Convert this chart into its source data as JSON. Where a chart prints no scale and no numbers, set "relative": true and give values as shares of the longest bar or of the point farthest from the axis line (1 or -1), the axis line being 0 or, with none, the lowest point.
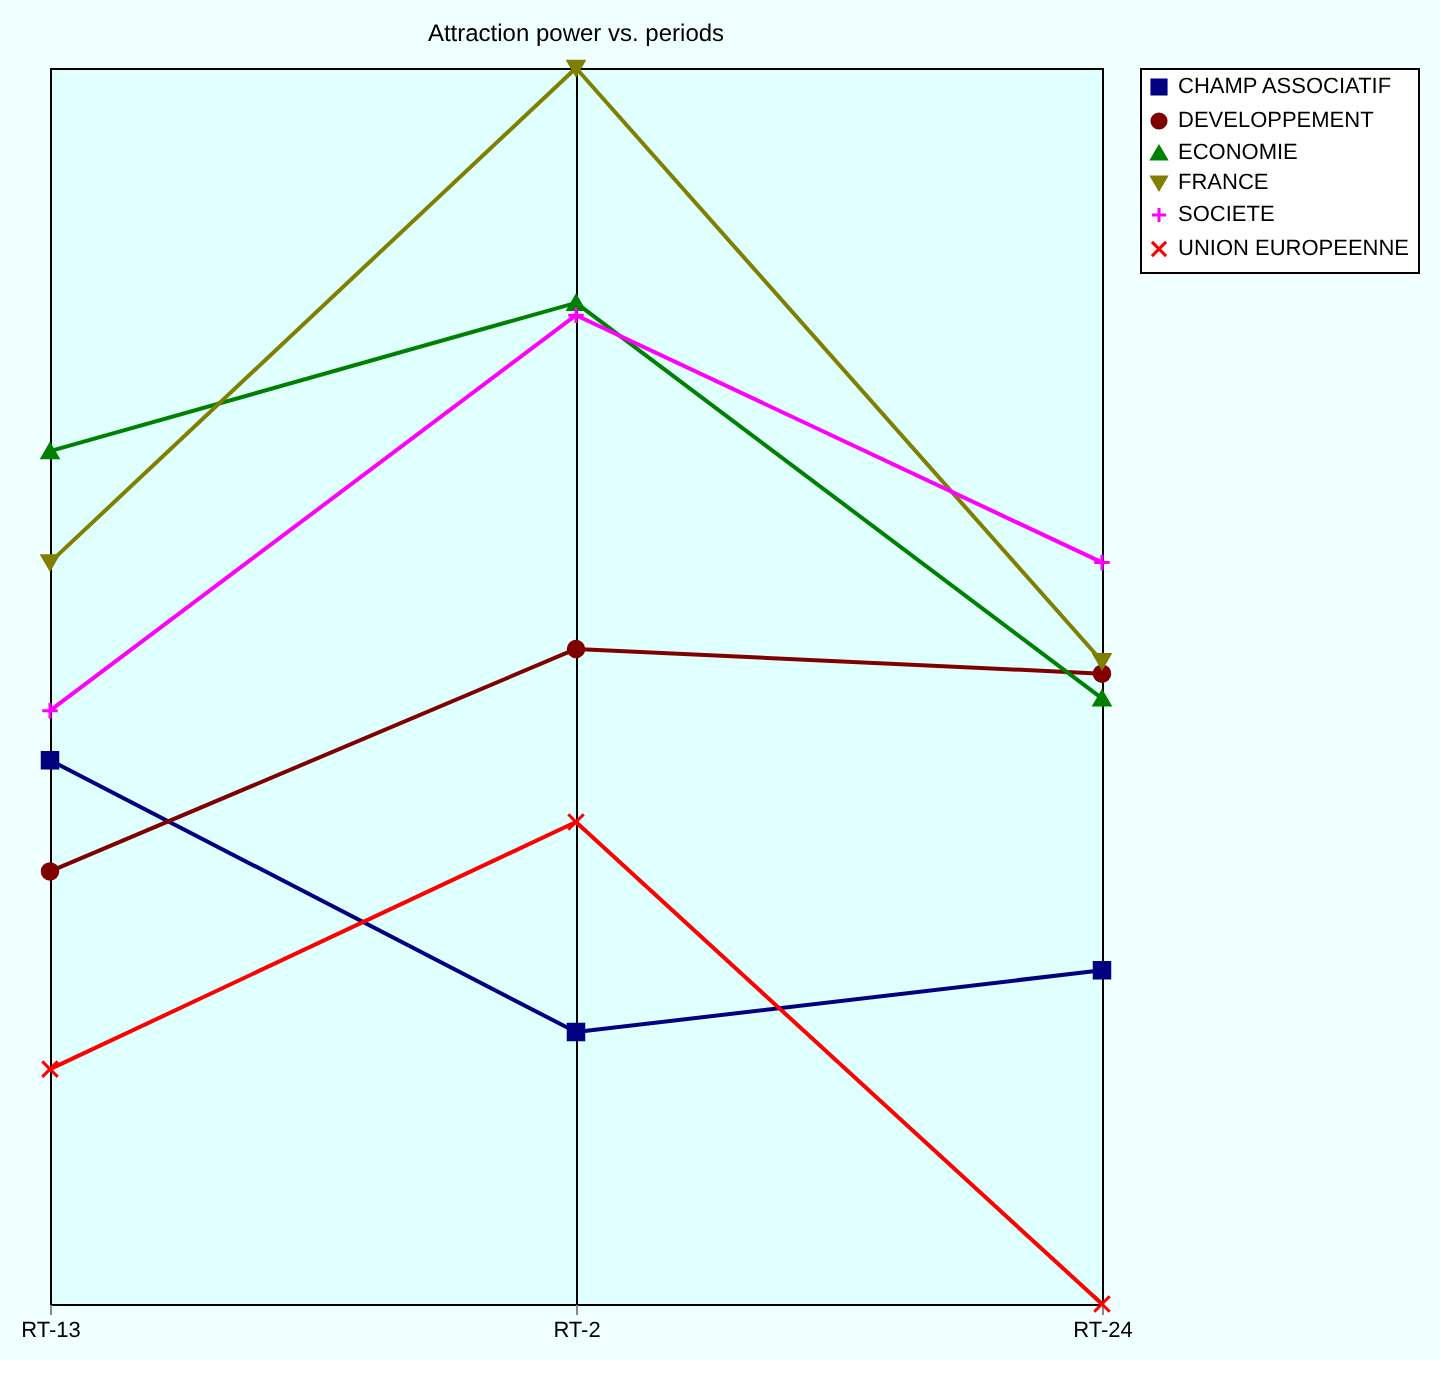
{
  "chart_data": {
    "type": "line",
    "title": "Attraction power vs. periods",
    "categories": [
      "RT-13",
      "RT-2",
      "RT-24"
    ],
    "relative": true,
    "grid": "x",
    "legend": "top right",
    "series": [
      {
        "name": "CHAMP ASSOCIATIF",
        "color": "#000080",
        "marker": "square",
        "values": [
          0.44,
          0.22,
          0.27
        ]
      },
      {
        "name": "DEVELOPPEMENT",
        "color": "#800000",
        "marker": "circle",
        "values": [
          0.35,
          0.53,
          0.51
        ]
      },
      {
        "name": "ECONOMIE",
        "color": "#008000",
        "marker": "triangle",
        "values": [
          0.69,
          0.81,
          0.49
        ]
      },
      {
        "name": "FRANCE",
        "color": "#808000",
        "marker": "triangle-down",
        "values": [
          0.6,
          1,
          0.52
        ]
      },
      {
        "name": "SOCIETE",
        "color": "#ff00ff",
        "marker": "plus",
        "values": [
          0.48,
          0.8,
          0.6
        ]
      },
      {
        "name": "UNION EUROPEENNE",
        "color": "#ff0000",
        "marker": "x",
        "values": [
          0.19,
          0.39,
          0
        ]
      }
    ]
  }
}
